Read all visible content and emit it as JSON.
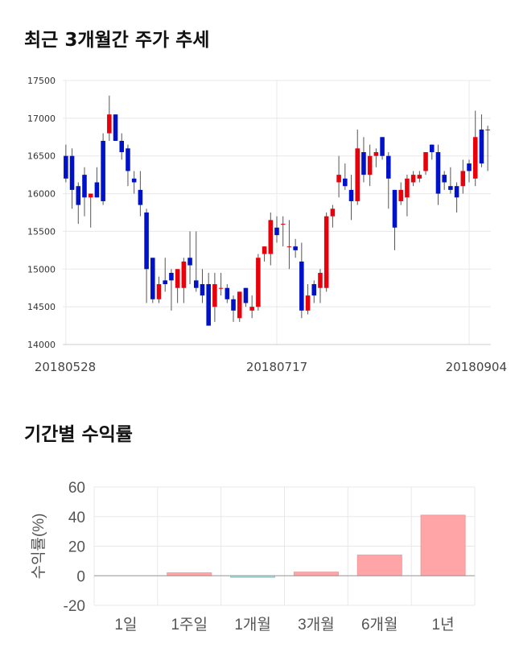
{
  "titles": {
    "price": "최근 3개월간 주가 추세",
    "returns": "기간별 수익률"
  },
  "colors": {
    "up": "#e8000b",
    "down": "#0012c8",
    "grid": "#e8e8e8",
    "return_pos": "#ffa5a8",
    "return_neg": "#a8d8e0"
  },
  "chart_data": [
    {
      "type": "candlestick",
      "title": "최근 3개월간 주가 추세",
      "ylim": [
        14000,
        17500
      ],
      "yticks": [
        14000,
        14500,
        15000,
        15500,
        16000,
        16500,
        17000,
        17500
      ],
      "xtick_labels": [
        {
          "index": 0,
          "label": "20180528"
        },
        {
          "index": 34,
          "label": "20180717"
        },
        {
          "index": 65,
          "label": "20180904"
        }
      ],
      "grid": true,
      "candles": [
        [
          16500,
          16650,
          16150,
          16200
        ],
        [
          16500,
          16600,
          15800,
          16050
        ],
        [
          16100,
          16150,
          15600,
          15850
        ],
        [
          16250,
          16350,
          15700,
          15950
        ],
        [
          15950,
          16000,
          15550,
          16000
        ],
        [
          16150,
          16350,
          15950,
          15950
        ],
        [
          16700,
          16800,
          15850,
          15900
        ],
        [
          16800,
          17300,
          16700,
          17050
        ],
        [
          17050,
          17050,
          16700,
          16700
        ],
        [
          16700,
          16800,
          16450,
          16550
        ],
        [
          16600,
          16650,
          16100,
          16300
        ],
        [
          16200,
          16300,
          16000,
          16150
        ],
        [
          16050,
          16300,
          15700,
          15850
        ],
        [
          15750,
          15800,
          14550,
          15000
        ],
        [
          15150,
          15150,
          14550,
          14600
        ],
        [
          14600,
          14900,
          14550,
          14800
        ],
        [
          14850,
          15150,
          14700,
          14800
        ],
        [
          14950,
          15000,
          14450,
          14850
        ],
        [
          14750,
          15000,
          14550,
          15000
        ],
        [
          14750,
          15150,
          14550,
          15100
        ],
        [
          15150,
          15500,
          14800,
          15050
        ],
        [
          14850,
          15500,
          14700,
          14750
        ],
        [
          14800,
          15000,
          14550,
          14650
        ],
        [
          14800,
          14950,
          14250,
          14250
        ],
        [
          14500,
          14950,
          14300,
          14800
        ],
        [
          14750,
          14950,
          14650,
          14750
        ],
        [
          14750,
          14800,
          14550,
          14600
        ],
        [
          14600,
          14650,
          14300,
          14450
        ],
        [
          14350,
          14700,
          14300,
          14700
        ],
        [
          14750,
          14750,
          14500,
          14550
        ],
        [
          14450,
          14650,
          14350,
          14500
        ],
        [
          14500,
          15200,
          14450,
          15150
        ],
        [
          15200,
          15300,
          15100,
          15300
        ],
        [
          15200,
          15750,
          15050,
          15650
        ],
        [
          15550,
          15700,
          15350,
          15450
        ],
        [
          15600,
          15700,
          15300,
          15600
        ],
        [
          15300,
          15650,
          15000,
          15300
        ],
        [
          15300,
          15400,
          15150,
          15250
        ],
        [
          15100,
          15350,
          14350,
          14450
        ],
        [
          14450,
          14800,
          14400,
          14650
        ],
        [
          14800,
          14850,
          14550,
          14650
        ],
        [
          14750,
          15000,
          14550,
          14950
        ],
        [
          14750,
          15750,
          14700,
          15700
        ],
        [
          15700,
          15850,
          15550,
          15800
        ],
        [
          16150,
          16500,
          15950,
          16250
        ],
        [
          16200,
          16400,
          16050,
          16100
        ],
        [
          16050,
          16250,
          15650,
          15900
        ],
        [
          15900,
          16850,
          15850,
          16600
        ],
        [
          16550,
          16750,
          16150,
          16250
        ],
        [
          16250,
          16650,
          16100,
          16500
        ],
        [
          16500,
          16600,
          16350,
          16550
        ],
        [
          16750,
          16750,
          16450,
          16500
        ],
        [
          16500,
          16550,
          15800,
          16200
        ],
        [
          16050,
          16050,
          15250,
          15550
        ],
        [
          15900,
          16150,
          15850,
          16050
        ],
        [
          15950,
          16250,
          15700,
          16200
        ],
        [
          16150,
          16300,
          16100,
          16250
        ],
        [
          16200,
          16300,
          16150,
          16250
        ],
        [
          16300,
          16550,
          16250,
          16550
        ],
        [
          16650,
          16650,
          16450,
          16550
        ],
        [
          16550,
          16650,
          15850,
          16000
        ],
        [
          16250,
          16300,
          16050,
          16150
        ],
        [
          16100,
          16350,
          16000,
          16050
        ],
        [
          16100,
          16150,
          15750,
          15950
        ],
        [
          16100,
          16450,
          16000,
          16300
        ],
        [
          16400,
          16450,
          16150,
          16300
        ],
        [
          16200,
          17100,
          16100,
          16750
        ],
        [
          16850,
          17050,
          16350,
          16400
        ],
        [
          16850,
          16900,
          16300,
          16850
        ]
      ]
    },
    {
      "type": "bar",
      "title": "기간별 수익률",
      "ylabel": "수익률(%)",
      "ylim": [
        -20,
        60
      ],
      "yticks": [
        -20,
        0,
        20,
        40,
        60
      ],
      "categories": [
        "1일",
        "1주일",
        "1개월",
        "3개월",
        "6개월",
        "1년"
      ],
      "values": [
        0,
        2,
        -0.5,
        2.5,
        14,
        41
      ],
      "grid": true
    }
  ]
}
